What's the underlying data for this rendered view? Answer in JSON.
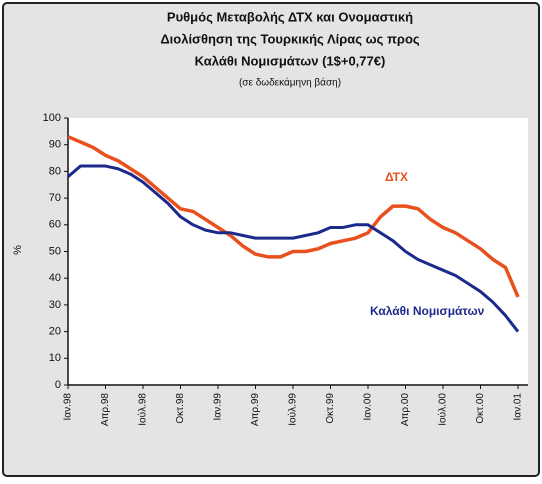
{
  "chart_data": {
    "type": "line",
    "title": [
      "Ρυθμός Μεταβολής ΔΤΧ και Ονομαστική",
      "Διολίσθηση της Τουρκικής Λίρας ως προς",
      "Καλάθι Νομισμάτων (1$+0,77€)"
    ],
    "subtitle": "(σε δωδεκάμηνη βάση)",
    "y_label": "%",
    "categories": [
      "Ιαν.98",
      null,
      null,
      "Απρ.98",
      null,
      null,
      "Ιούλ.98",
      null,
      null,
      "Οκτ.98",
      null,
      null,
      "Ιαν.99",
      null,
      null,
      "Απρ.99",
      null,
      null,
      "Ιούλ.99",
      null,
      null,
      "Οκτ.99",
      null,
      null,
      "Ιαν.00",
      null,
      null,
      "Απρ.00",
      null,
      null,
      "Ιούλ.00",
      null,
      null,
      "Οκτ.00",
      null,
      null,
      "Ιαν.01"
    ],
    "series": [
      {
        "name": "ΔΤΧ",
        "color": "#e8501e",
        "values": [
          93,
          91,
          89,
          86,
          84,
          81,
          78,
          74,
          70,
          66,
          65,
          62,
          59,
          56,
          52,
          49,
          48,
          48,
          50,
          50,
          51,
          53,
          54,
          55,
          57,
          63,
          67,
          67,
          66,
          62,
          59,
          57,
          54,
          51,
          47,
          44,
          33
        ]
      },
      {
        "name": "Καλάθι Νομισμάτων",
        "color": "#1c2a8c",
        "values": [
          78,
          82,
          82,
          82,
          81,
          79,
          76,
          72,
          68,
          63,
          60,
          58,
          57,
          57,
          56,
          55,
          55,
          55,
          55,
          56,
          57,
          59,
          59,
          60,
          60,
          57,
          54,
          50,
          47,
          45,
          43,
          41,
          38,
          35,
          31,
          26,
          20
        ]
      }
    ],
    "ylim": [
      0,
      100
    ],
    "yticks": [
      0,
      10,
      20,
      30,
      40,
      50,
      60,
      70,
      80,
      90,
      100
    ]
  }
}
